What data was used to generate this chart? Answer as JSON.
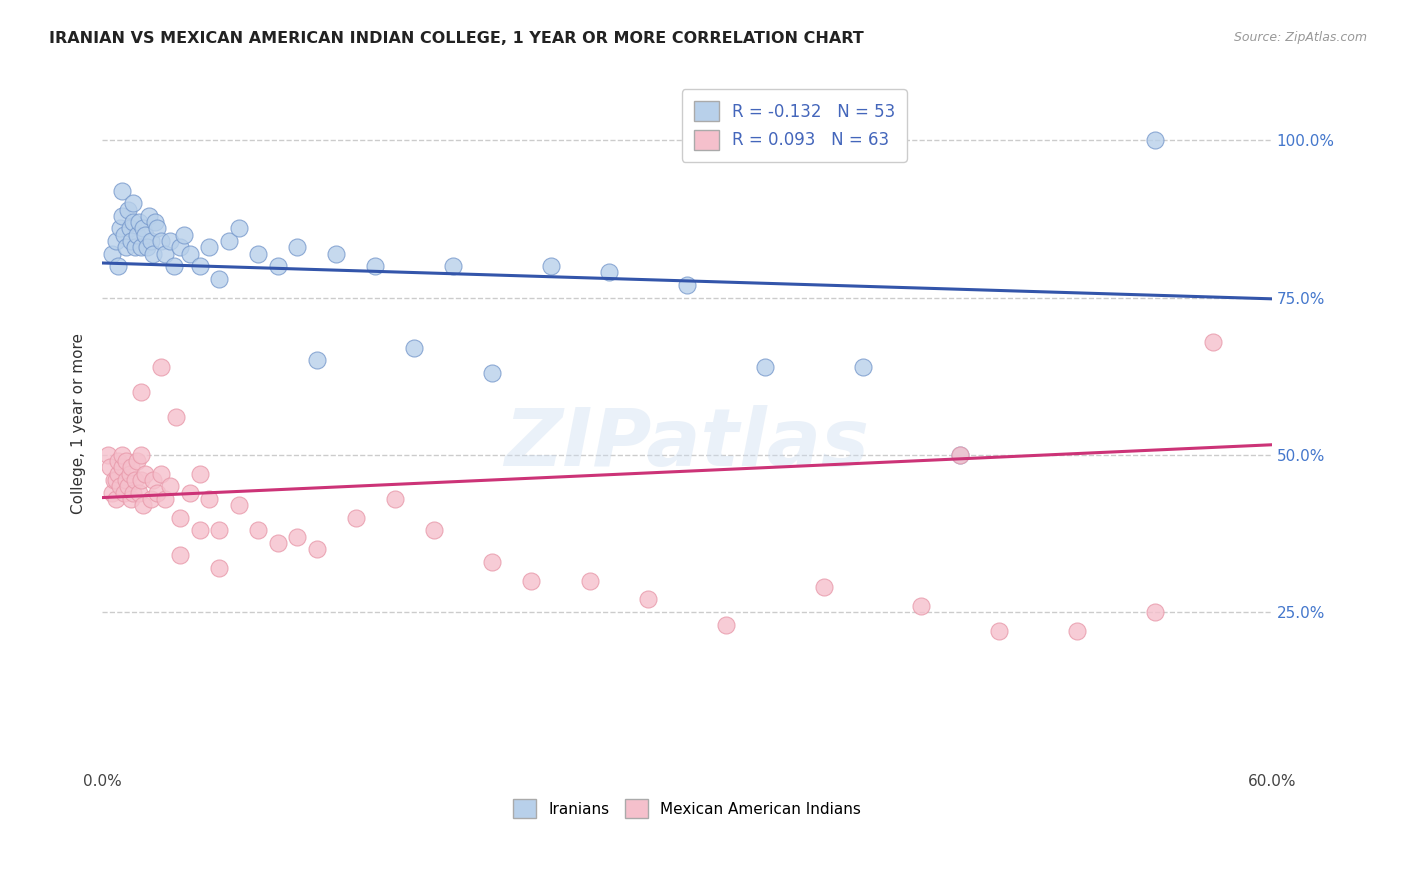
{
  "title": "IRANIAN VS MEXICAN AMERICAN INDIAN COLLEGE, 1 YEAR OR MORE CORRELATION CHART",
  "source": "Source: ZipAtlas.com",
  "ylabel": "College, 1 year or more",
  "xlim": [
    0.0,
    0.6
  ],
  "ylim": [
    0.0,
    1.1
  ],
  "xtick_positions": [
    0.0,
    0.1,
    0.2,
    0.3,
    0.4,
    0.5,
    0.6
  ],
  "xticklabels": [
    "0.0%",
    "",
    "",
    "",
    "",
    "",
    "60.0%"
  ],
  "ytick_positions": [
    0.25,
    0.5,
    0.75,
    1.0
  ],
  "ytick_labels_right": [
    "25.0%",
    "50.0%",
    "75.0%",
    "100.0%"
  ],
  "watermark": "ZIPatlas",
  "blue_face_color": "#b8d0ea",
  "blue_edge_color": "#7799cc",
  "pink_face_color": "#f5c0cc",
  "pink_edge_color": "#e899aa",
  "blue_line_color": "#3355aa",
  "pink_line_color": "#cc3377",
  "legend_blue_label": "R = -0.132   N = 53",
  "legend_pink_label": "R = 0.093   N = 63",
  "legend_text_color": "#4466bb",
  "bottom_legend_labels": [
    "Iranians",
    "Mexican American Indians"
  ],
  "blue_trend_x0": 0.0,
  "blue_trend_y0": 0.805,
  "blue_trend_x1": 0.6,
  "blue_trend_y1": 0.748,
  "pink_trend_x0": 0.0,
  "pink_trend_y0": 0.432,
  "pink_trend_x1": 0.6,
  "pink_trend_y1": 0.516,
  "iranians_x": [
    0.005,
    0.007,
    0.008,
    0.009,
    0.01,
    0.01,
    0.011,
    0.012,
    0.013,
    0.014,
    0.015,
    0.016,
    0.016,
    0.017,
    0.018,
    0.019,
    0.02,
    0.021,
    0.022,
    0.023,
    0.024,
    0.025,
    0.026,
    0.027,
    0.028,
    0.03,
    0.032,
    0.035,
    0.037,
    0.04,
    0.042,
    0.045,
    0.05,
    0.055,
    0.06,
    0.065,
    0.07,
    0.08,
    0.09,
    0.1,
    0.11,
    0.12,
    0.14,
    0.16,
    0.18,
    0.2,
    0.23,
    0.26,
    0.3,
    0.34,
    0.39,
    0.44,
    0.54
  ],
  "iranians_y": [
    0.82,
    0.84,
    0.8,
    0.86,
    0.88,
    0.92,
    0.85,
    0.83,
    0.89,
    0.86,
    0.84,
    0.87,
    0.9,
    0.83,
    0.85,
    0.87,
    0.83,
    0.86,
    0.85,
    0.83,
    0.88,
    0.84,
    0.82,
    0.87,
    0.86,
    0.84,
    0.82,
    0.84,
    0.8,
    0.83,
    0.85,
    0.82,
    0.8,
    0.83,
    0.78,
    0.84,
    0.86,
    0.82,
    0.8,
    0.83,
    0.65,
    0.82,
    0.8,
    0.67,
    0.8,
    0.63,
    0.8,
    0.79,
    0.77,
    0.64,
    0.64,
    0.5,
    1.0
  ],
  "mexican_x": [
    0.003,
    0.004,
    0.005,
    0.006,
    0.007,
    0.007,
    0.008,
    0.008,
    0.009,
    0.01,
    0.01,
    0.011,
    0.012,
    0.012,
    0.013,
    0.014,
    0.015,
    0.015,
    0.016,
    0.017,
    0.018,
    0.019,
    0.02,
    0.02,
    0.021,
    0.022,
    0.025,
    0.026,
    0.028,
    0.03,
    0.032,
    0.035,
    0.038,
    0.04,
    0.045,
    0.05,
    0.055,
    0.06,
    0.07,
    0.08,
    0.09,
    0.1,
    0.11,
    0.13,
    0.15,
    0.17,
    0.2,
    0.22,
    0.25,
    0.28,
    0.32,
    0.37,
    0.42,
    0.46,
    0.5,
    0.54,
    0.57,
    0.02,
    0.03,
    0.04,
    0.05,
    0.06,
    0.44
  ],
  "mexican_y": [
    0.5,
    0.48,
    0.44,
    0.46,
    0.43,
    0.46,
    0.47,
    0.49,
    0.45,
    0.48,
    0.5,
    0.44,
    0.46,
    0.49,
    0.45,
    0.47,
    0.43,
    0.48,
    0.44,
    0.46,
    0.49,
    0.44,
    0.46,
    0.5,
    0.42,
    0.47,
    0.43,
    0.46,
    0.44,
    0.47,
    0.43,
    0.45,
    0.56,
    0.4,
    0.44,
    0.47,
    0.43,
    0.38,
    0.42,
    0.38,
    0.36,
    0.37,
    0.35,
    0.4,
    0.43,
    0.38,
    0.33,
    0.3,
    0.3,
    0.27,
    0.23,
    0.29,
    0.26,
    0.22,
    0.22,
    0.25,
    0.68,
    0.6,
    0.64,
    0.34,
    0.38,
    0.32,
    0.5
  ]
}
